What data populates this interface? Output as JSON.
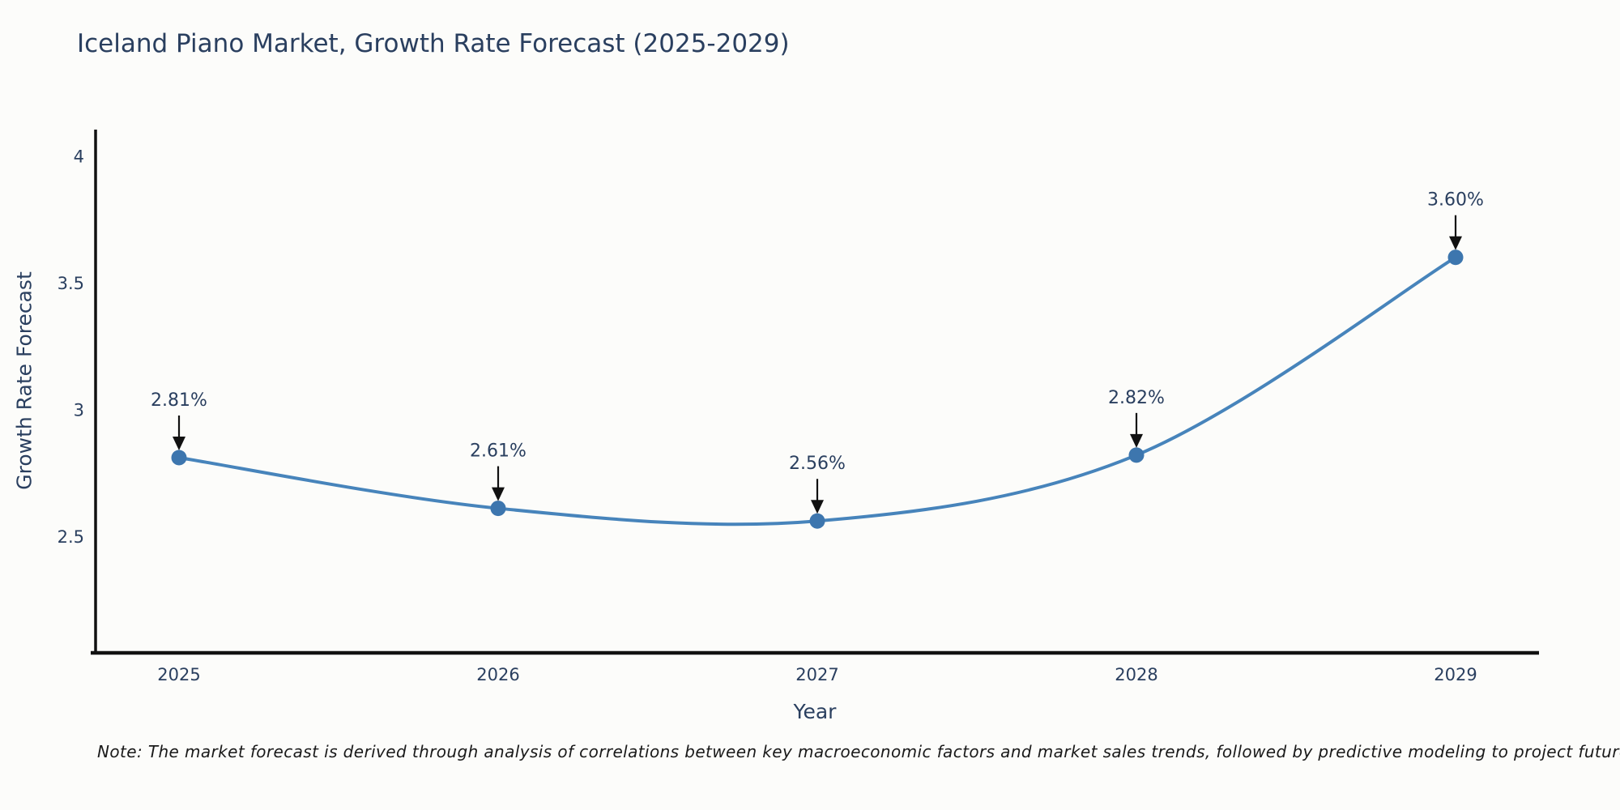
{
  "title": "Iceland Piano Market, Growth Rate Forecast (2025-2029)",
  "note": "Note: The market forecast is derived through analysis of correlations between key macroeconomic factors and market sales trends, followed by predictive modeling to project future sales",
  "chart_data": {
    "type": "line",
    "title": "Iceland Piano Market, Growth Rate Forecast (2025-2029)",
    "xlabel": "Year",
    "ylabel": "Growth Rate Forecast",
    "x": [
      2025,
      2026,
      2027,
      2028,
      2029
    ],
    "values": [
      2.81,
      2.61,
      2.56,
      2.82,
      3.6
    ],
    "point_labels": [
      "2.81%",
      "2.61%",
      "2.56%",
      "2.82%",
      "3.60%"
    ],
    "xtick_labels": [
      "2025",
      "2026",
      "2027",
      "2028",
      "2029"
    ],
    "yticks": [
      2.5,
      3,
      3.5,
      4
    ],
    "ytick_labels": [
      "2.5",
      "3",
      "3.5",
      "4"
    ],
    "ylim": [
      2.04,
      4.1
    ],
    "grid": false,
    "line_shape": "spline",
    "legend": "none",
    "annotation_style": "value labels above points with downward black arrows",
    "colors": {
      "line": "#4784bb",
      "marker": "#3d76ae",
      "axis": "#111111",
      "text": "#2a3f5f",
      "annotation_text": "#2a3f5f",
      "arrow": "#111111",
      "background": "#fcfcfa"
    }
  }
}
